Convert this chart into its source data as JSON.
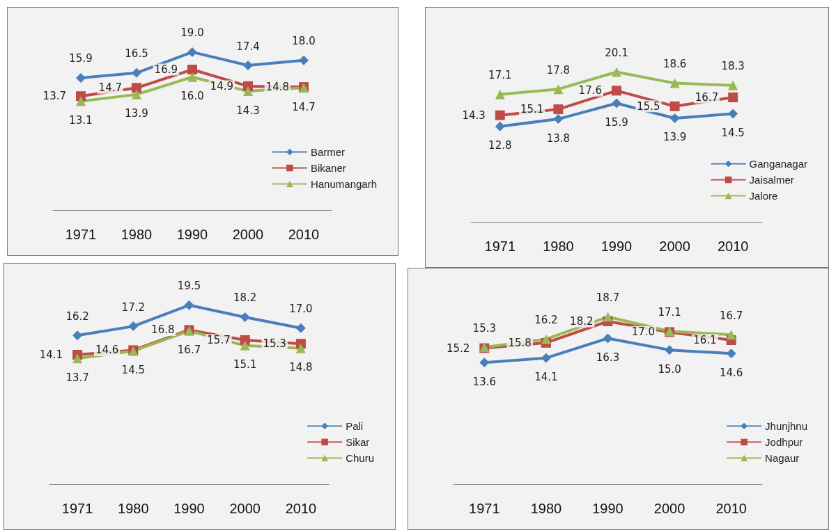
{
  "chart_data": [
    {
      "type": "line",
      "categories": [
        "1971",
        "1980",
        "1990",
        "2000",
        "2010"
      ],
      "legend": "bottom right",
      "grid": false,
      "tick_labels": "x",
      "series": [
        {
          "name": "Barmer",
          "color": "#4a7ebb",
          "marker": "diamond",
          "values": [
            15.9,
            16.5,
            19.0,
            17.4,
            18.0
          ],
          "value_labels": [
            "15.9",
            "16.5",
            "19.0",
            "17.4",
            "18.0"
          ]
        },
        {
          "name": "Bikaner",
          "color": "#be4b48",
          "marker": "square",
          "values": [
            13.7,
            14.7,
            16.9,
            14.9,
            14.8
          ],
          "value_labels": [
            "13.7",
            "14.7",
            "16.9",
            "14.9",
            "14.8"
          ]
        },
        {
          "name": "Hanumangarh",
          "color": "#98b954",
          "marker": "triangle",
          "values": [
            13.1,
            13.9,
            16.0,
            14.3,
            14.7
          ],
          "value_labels": [
            "13.1",
            "13.9",
            "16.0",
            "14.3",
            "14.7"
          ]
        }
      ]
    },
    {
      "type": "line",
      "categories": [
        "1971",
        "1980",
        "1990",
        "2000",
        "2010"
      ],
      "legend": "bottom right",
      "grid": false,
      "tick_labels": "x",
      "series": [
        {
          "name": "Ganganagar",
          "color": "#4a7ebb",
          "marker": "diamond",
          "values": [
            12.8,
            13.8,
            15.9,
            13.9,
            14.5
          ],
          "value_labels": [
            "12.8",
            "13.8",
            "15.9",
            "13.9",
            "14.5"
          ]
        },
        {
          "name": "Jaisalmer",
          "color": "#be4b48",
          "marker": "square",
          "values": [
            14.3,
            15.1,
            17.6,
            15.5,
            16.7
          ],
          "value_labels": [
            "14.3",
            "15.1",
            "17.6",
            "15.5",
            "16.7"
          ]
        },
        {
          "name": "Jalore",
          "color": "#98b954",
          "marker": "triangle",
          "values": [
            17.1,
            17.8,
            20.1,
            18.6,
            18.3
          ],
          "value_labels": [
            "17.1",
            "17.8",
            "20.1",
            "18.6",
            "18.3"
          ]
        }
      ]
    },
    {
      "type": "line",
      "categories": [
        "1971",
        "1980",
        "1990",
        "2000",
        "2010"
      ],
      "legend": "bottom right",
      "grid": false,
      "tick_labels": "x",
      "series": [
        {
          "name": "Pali",
          "color": "#4a7ebb",
          "marker": "diamond",
          "values": [
            16.2,
            17.2,
            19.5,
            18.2,
            17.0
          ],
          "value_labels": [
            "16.2",
            "17.2",
            "19.5",
            "18.2",
            "17.0"
          ]
        },
        {
          "name": "Sikar",
          "color": "#be4b48",
          "marker": "square",
          "values": [
            14.1,
            14.6,
            16.8,
            15.7,
            15.3
          ],
          "value_labels": [
            "14.1",
            "14.6",
            "16.8",
            "15.7",
            "15.3"
          ]
        },
        {
          "name": "Churu",
          "color": "#98b954",
          "marker": "triangle",
          "values": [
            13.7,
            14.5,
            16.7,
            15.1,
            14.8
          ],
          "value_labels": [
            "13.7",
            "14.5",
            "16.7",
            "15.1",
            "14.8"
          ]
        }
      ]
    },
    {
      "type": "line",
      "categories": [
        "1971",
        "1980",
        "1990",
        "2000",
        "2010"
      ],
      "legend": "bottom right",
      "grid": false,
      "tick_labels": "x",
      "series": [
        {
          "name": "Jhunjhnu",
          "color": "#4a7ebb",
          "marker": "diamond",
          "values": [
            13.6,
            14.1,
            16.3,
            15.0,
            14.6
          ],
          "value_labels": [
            "13.6",
            "14.1",
            "16.3",
            "15.0",
            "14.6"
          ]
        },
        {
          "name": "Jodhpur",
          "color": "#be4b48",
          "marker": "square",
          "values": [
            15.2,
            15.8,
            18.2,
            17.0,
            16.1
          ],
          "value_labels": [
            "15.2",
            "15.8",
            "18.2",
            "17.0",
            "16.1"
          ]
        },
        {
          "name": "Nagaur",
          "color": "#98b954",
          "marker": "triangle",
          "values": [
            15.3,
            16.2,
            18.7,
            17.1,
            16.7
          ],
          "value_labels": [
            "15.3",
            "16.2",
            "18.7",
            "17.1",
            "16.7"
          ]
        }
      ]
    }
  ]
}
